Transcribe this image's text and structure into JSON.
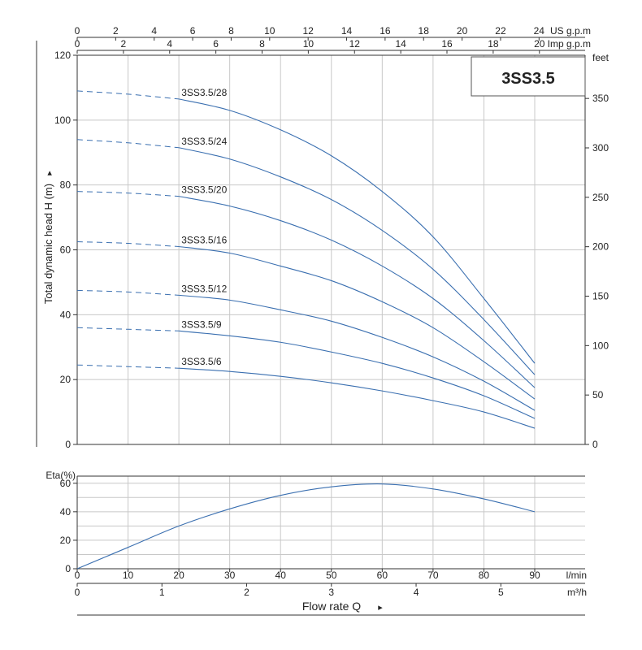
{
  "title": "3SS3.5",
  "colors": {
    "curve": "#3a6fb0",
    "grid": "#c8c8c8",
    "axis": "#333333"
  },
  "chart_data": [
    {
      "type": "line",
      "id": "head-chart",
      "ylabel": "Total dynamic head H (m)",
      "ylabel_arrow": "▸",
      "ylim": [
        0,
        120
      ],
      "y_ticks": [
        "0",
        "20",
        "40",
        "60",
        "80",
        "100",
        "120"
      ],
      "y2_unit": "feet",
      "y2_ticks": [
        "0",
        "50",
        "100",
        "150",
        "200",
        "250",
        "300",
        "350"
      ],
      "top_axes": [
        {
          "unit": "US g.p.m",
          "ticks": [
            "0",
            "2",
            "4",
            "6",
            "8",
            "10",
            "12",
            "14",
            "16",
            "18",
            "20",
            "22",
            "24"
          ]
        },
        {
          "unit": "Imp g.p.m",
          "ticks": [
            "0",
            "2",
            "4",
            "6",
            "8",
            "10",
            "12",
            "14",
            "16",
            "18",
            "20"
          ]
        }
      ],
      "xlim": [
        0,
        90
      ],
      "grid": true,
      "dashed_segment_end_x": 20,
      "series": [
        {
          "name": "3SS3.5/28",
          "x": [
            0,
            10,
            20,
            30,
            40,
            50,
            60,
            70,
            80,
            90
          ],
          "values": [
            109,
            108,
            106.5,
            103,
            97,
            89,
            78,
            64,
            45,
            25
          ]
        },
        {
          "name": "3SS3.5/24",
          "x": [
            0,
            10,
            20,
            30,
            40,
            50,
            60,
            70,
            80,
            90
          ],
          "values": [
            94,
            93,
            91.5,
            88,
            82.5,
            75.5,
            66,
            54,
            38.5,
            21.5
          ]
        },
        {
          "name": "3SS3.5/20",
          "x": [
            0,
            10,
            20,
            30,
            40,
            50,
            60,
            70,
            80,
            90
          ],
          "values": [
            78,
            77.5,
            76.5,
            73.5,
            69,
            63,
            55,
            45,
            32,
            17.5
          ]
        },
        {
          "name": "3SS3.5/16",
          "x": [
            0,
            10,
            20,
            30,
            40,
            50,
            60,
            70,
            80,
            90
          ],
          "values": [
            62.5,
            62,
            61,
            59,
            55,
            50.5,
            44,
            36,
            25.5,
            14
          ]
        },
        {
          "name": "3SS3.5/12",
          "x": [
            0,
            10,
            20,
            30,
            40,
            50,
            60,
            70,
            80,
            90
          ],
          "values": [
            47.5,
            47,
            46,
            44.5,
            41.5,
            38,
            33,
            27,
            19.5,
            10.5
          ]
        },
        {
          "name": "3SS3.5/9",
          "x": [
            0,
            10,
            20,
            30,
            40,
            50,
            60,
            70,
            80,
            90
          ],
          "values": [
            36,
            35.5,
            35,
            33.5,
            31.5,
            28.5,
            25,
            20.5,
            15,
            8
          ]
        },
        {
          "name": "3SS3.5/6",
          "x": [
            0,
            10,
            20,
            30,
            40,
            50,
            60,
            70,
            80,
            90
          ],
          "values": [
            24.5,
            24,
            23.5,
            22.5,
            21,
            19,
            16.5,
            13.5,
            10,
            5
          ]
        }
      ]
    },
    {
      "type": "line",
      "id": "efficiency-chart",
      "ylabel": "Eta(%)",
      "ylim": [
        0,
        65
      ],
      "y_ticks": [
        "0",
        "20",
        "40",
        "60"
      ],
      "xlim": [
        0,
        90
      ],
      "x_ticks": [
        "0",
        "10",
        "20",
        "30",
        "40",
        "50",
        "60",
        "70",
        "80",
        "90"
      ],
      "x_unit": "l/min",
      "x2_ticks": [
        "0",
        "1",
        "2",
        "3",
        "4",
        "5"
      ],
      "x2_unit": "m³/h",
      "xlabel": "Flow rate Q",
      "xlabel_arrow": "▸",
      "grid": true,
      "series": [
        {
          "name": "",
          "x": [
            0,
            10,
            20,
            30,
            40,
            50,
            60,
            70,
            80,
            90
          ],
          "values": [
            0,
            15,
            30,
            42,
            51.5,
            57.5,
            59.5,
            56,
            49,
            40
          ]
        }
      ]
    }
  ]
}
